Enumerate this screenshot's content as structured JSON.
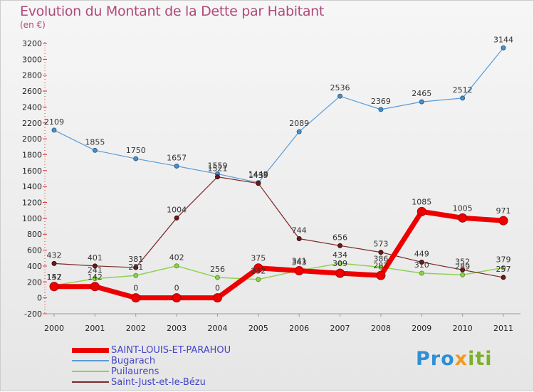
{
  "title": "Evolution du Montant de la Dette par Habitant",
  "subtitle": "(en €)",
  "logo": {
    "p1": "Pro",
    "p2": "x",
    "p3": "iti"
  },
  "chart_data": {
    "type": "line",
    "title": "Evolution du Montant de la Dette par Habitant",
    "subtitle": "(en €)",
    "xlabel": "",
    "ylabel": "",
    "ylim": [
      -200,
      3200
    ],
    "yticks": [
      -200,
      0,
      200,
      400,
      600,
      800,
      1000,
      1200,
      1400,
      1600,
      1800,
      2000,
      2200,
      2400,
      2600,
      2800,
      3000,
      3200
    ],
    "categories": [
      "2000",
      "2001",
      "2002",
      "2003",
      "2004",
      "2005",
      "2006",
      "2007",
      "2008",
      "2009",
      "2010",
      "2011"
    ],
    "grid": false,
    "legend_position": "bottom-left",
    "series": [
      {
        "name": "SAINT-LOUIS-ET-PARAHOU",
        "color": "#ee0000",
        "values": [
          142,
          142,
          0,
          0,
          0,
          375,
          341,
          309,
          282,
          1085,
          1005,
          971
        ]
      },
      {
        "name": "Bugarach",
        "color": "#5b9bd5",
        "values": [
          2109,
          1855,
          1750,
          1657,
          1559,
          1449,
          2089,
          2536,
          2369,
          2465,
          2512,
          3144
        ]
      },
      {
        "name": "Puilaurens",
        "color": "#8fd14f",
        "values": [
          157,
          241,
          281,
          402,
          256,
          232,
          343,
          434,
          386,
          310,
          289,
          379
        ]
      },
      {
        "name": "Saint-Just-et-le-Bézu",
        "color": "#7a2a2a",
        "values": [
          432,
          401,
          381,
          1004,
          1521,
          1439,
          744,
          656,
          573,
          449,
          352,
          257
        ]
      }
    ]
  }
}
